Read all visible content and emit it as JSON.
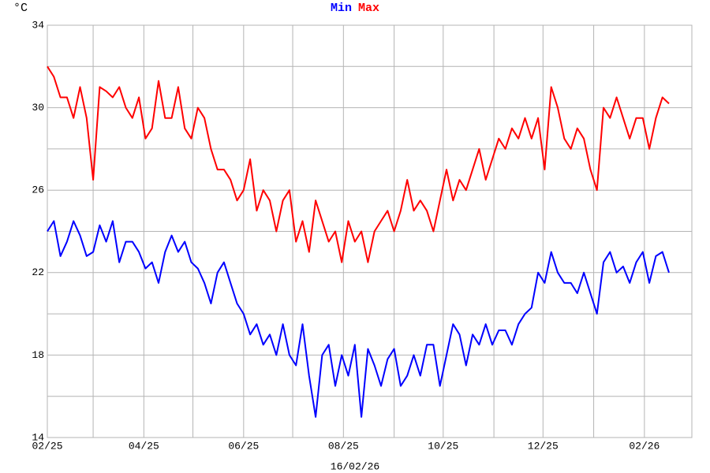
{
  "chart_data": {
    "type": "line",
    "title_note": "16/02/26",
    "ylabel": "°C",
    "x": [
      0,
      4,
      8,
      12,
      16,
      20,
      24,
      28,
      32,
      36,
      40,
      44,
      48,
      52,
      56,
      60,
      64,
      68,
      72,
      76,
      80,
      84,
      88,
      92,
      96,
      100,
      104,
      108,
      112,
      116,
      120,
      124,
      128,
      132,
      136,
      140,
      144,
      148,
      152,
      156,
      160,
      164,
      168,
      172,
      176,
      180,
      184,
      188,
      192,
      196,
      200,
      204,
      208,
      212,
      216,
      220,
      224,
      228,
      232,
      236,
      240,
      244,
      248,
      252,
      256,
      260,
      264,
      268,
      272,
      276,
      280,
      284,
      288,
      292,
      296,
      300,
      304,
      308,
      312,
      316,
      320,
      324,
      328,
      332,
      336,
      340,
      344,
      348,
      352,
      356,
      360,
      364,
      368,
      372,
      376,
      380
    ],
    "series": [
      {
        "name": "Min",
        "color": "#0000ff",
        "values": [
          24,
          24.5,
          22.8,
          23.5,
          24.5,
          23.8,
          22.8,
          23,
          24.3,
          23.5,
          24.5,
          22.5,
          23.5,
          23.5,
          23,
          22.2,
          22.5,
          21.5,
          23,
          23.8,
          23,
          23.5,
          22.5,
          22.2,
          21.5,
          20.5,
          22,
          22.5,
          21.5,
          20.5,
          20,
          19,
          19.5,
          18.5,
          19,
          18,
          19.5,
          18,
          17.5,
          19.5,
          17,
          15,
          18,
          18.5,
          16.5,
          18,
          17,
          18.5,
          15,
          18.3,
          17.5,
          16.5,
          17.8,
          18.3,
          16.5,
          17,
          18,
          17,
          18.5,
          18.5,
          16.5,
          18,
          19.5,
          19,
          17.5,
          19,
          18.5,
          19.5,
          18.5,
          19.2,
          19.2,
          18.5,
          19.5,
          20,
          20.3,
          22,
          21.5,
          23,
          22,
          21.5,
          21.5,
          21,
          22,
          21,
          20,
          22.5,
          23,
          22,
          22.3,
          21.5,
          22.5,
          23,
          21.5,
          22.8,
          23,
          22
        ]
      },
      {
        "name": "Max",
        "color": "#ff0000",
        "values": [
          32,
          31.5,
          30.5,
          30.5,
          29.5,
          31,
          29.5,
          26.5,
          31,
          30.8,
          30.5,
          31,
          30,
          29.5,
          30.5,
          28.5,
          29,
          31.3,
          29.5,
          29.5,
          31,
          29,
          28.5,
          30,
          29.5,
          28,
          27,
          27,
          26.5,
          25.5,
          26,
          27.5,
          25,
          26,
          25.5,
          24,
          25.5,
          26,
          23.5,
          24.5,
          23,
          25.5,
          24.5,
          23.5,
          24,
          22.5,
          24.5,
          23.5,
          24,
          22.5,
          24,
          24.5,
          25,
          24,
          25,
          26.5,
          25,
          25.5,
          25,
          24,
          25.5,
          27,
          25.5,
          26.5,
          26,
          27,
          28,
          26.5,
          27.5,
          28.5,
          28,
          29,
          28.5,
          29.5,
          28.5,
          29.5,
          27,
          31,
          30,
          28.5,
          28,
          29,
          28.5,
          27,
          26,
          30,
          29.5,
          30.5,
          29.5,
          28.5,
          29.5,
          29.5,
          28,
          29.5,
          30.5,
          30.2
        ]
      }
    ],
    "xlim": [
      0,
      394
    ],
    "xticks": [
      {
        "value": 0,
        "label": "02/25"
      },
      {
        "value": 59,
        "label": "04/25"
      },
      {
        "value": 120,
        "label": "06/25"
      },
      {
        "value": 181,
        "label": "08/25"
      },
      {
        "value": 242,
        "label": "10/25"
      },
      {
        "value": 303,
        "label": "12/25"
      },
      {
        "value": 365,
        "label": "02/26"
      }
    ],
    "xminor": [
      28,
      89,
      150,
      212,
      273,
      334
    ],
    "ylim": [
      14,
      34
    ],
    "yticks": [
      14,
      18,
      22,
      26,
      30,
      34
    ],
    "yminor": [
      16,
      20,
      24,
      28,
      32
    ],
    "grid": true
  }
}
